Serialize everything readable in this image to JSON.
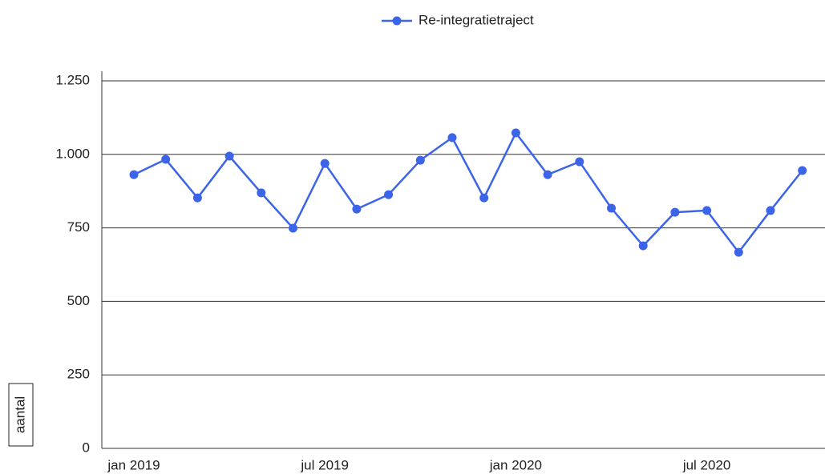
{
  "chart_data": {
    "type": "line",
    "y_label": "aantal",
    "categories": [
      "jan 2019",
      null,
      null,
      null,
      null,
      null,
      "jul 2019",
      null,
      null,
      null,
      null,
      null,
      "jan 2020",
      null,
      null,
      null,
      null,
      null,
      "jul 2020",
      null,
      null,
      null
    ],
    "series": [
      {
        "name": "Re-integratietraject",
        "color": "#3b64e8",
        "values": [
          931,
          983,
          852,
          994,
          869,
          749,
          969,
          814,
          863,
          980,
          1057,
          852,
          1073,
          931,
          975,
          817,
          689,
          803,
          809,
          667,
          809,
          945
        ]
      }
    ],
    "ylim": [
      0,
      1250
    ],
    "yticks": [
      0,
      250,
      500,
      750,
      {
        "value": 1000,
        "label": "1.000"
      },
      {
        "value": 1250,
        "label": "1.250"
      }
    ],
    "grid": true,
    "legend": "top"
  }
}
